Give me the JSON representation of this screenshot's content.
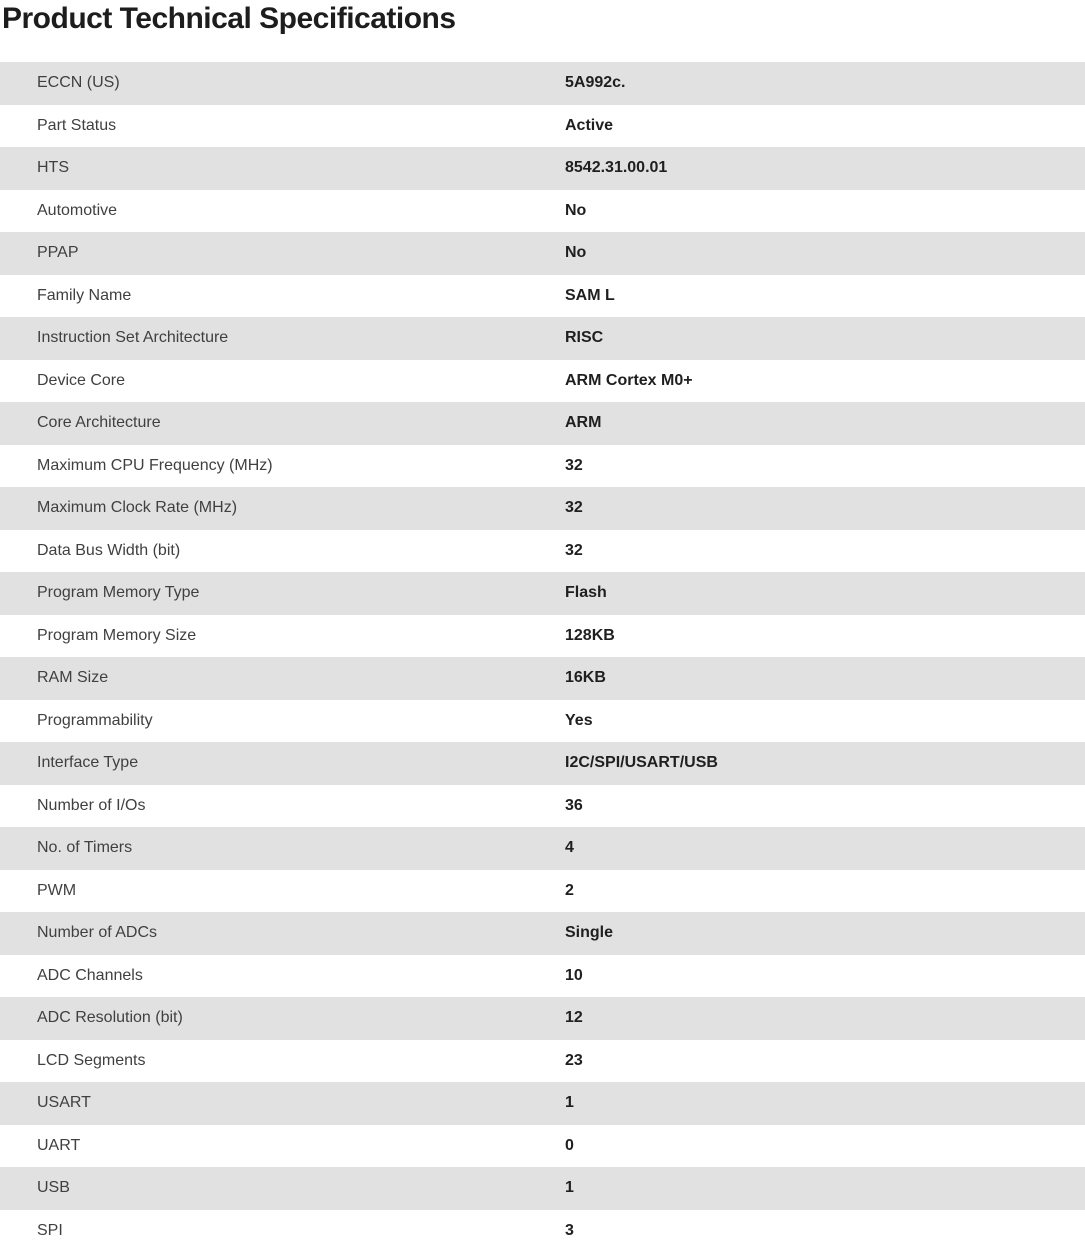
{
  "page": {
    "title": "Product Technical Specifications"
  },
  "colors": {
    "row_alt_bg": "#e1e1e1",
    "row_bg": "#ffffff",
    "label_text": "#404040",
    "value_text": "#1f1f1f",
    "title_text": "#1d1d1d"
  },
  "specs": {
    "rows": [
      {
        "label": "ECCN (US)",
        "value": "5A992c."
      },
      {
        "label": "Part Status",
        "value": "Active"
      },
      {
        "label": "HTS",
        "value": "8542.31.00.01"
      },
      {
        "label": "Automotive",
        "value": "No"
      },
      {
        "label": "PPAP",
        "value": "No"
      },
      {
        "label": "Family Name",
        "value": "SAM L"
      },
      {
        "label": "Instruction Set Architecture",
        "value": "RISC"
      },
      {
        "label": "Device Core",
        "value": "ARM Cortex M0+"
      },
      {
        "label": "Core Architecture",
        "value": "ARM"
      },
      {
        "label": "Maximum CPU Frequency (MHz)",
        "value": "32"
      },
      {
        "label": "Maximum Clock Rate (MHz)",
        "value": "32"
      },
      {
        "label": "Data Bus Width (bit)",
        "value": "32"
      },
      {
        "label": "Program Memory Type",
        "value": "Flash"
      },
      {
        "label": "Program Memory Size",
        "value": "128KB"
      },
      {
        "label": "RAM Size",
        "value": "16KB"
      },
      {
        "label": "Programmability",
        "value": "Yes"
      },
      {
        "label": "Interface Type",
        "value": "I2C/SPI/USART/USB"
      },
      {
        "label": "Number of I/Os",
        "value": "36"
      },
      {
        "label": "No. of Timers",
        "value": "4"
      },
      {
        "label": "PWM",
        "value": "2"
      },
      {
        "label": "Number of ADCs",
        "value": "Single"
      },
      {
        "label": "ADC Channels",
        "value": "10"
      },
      {
        "label": "ADC Resolution (bit)",
        "value": "12"
      },
      {
        "label": "LCD Segments",
        "value": "23"
      },
      {
        "label": "USART",
        "value": "1"
      },
      {
        "label": "UART",
        "value": "0"
      },
      {
        "label": "USB",
        "value": "1"
      },
      {
        "label": "SPI",
        "value": "3"
      }
    ]
  }
}
